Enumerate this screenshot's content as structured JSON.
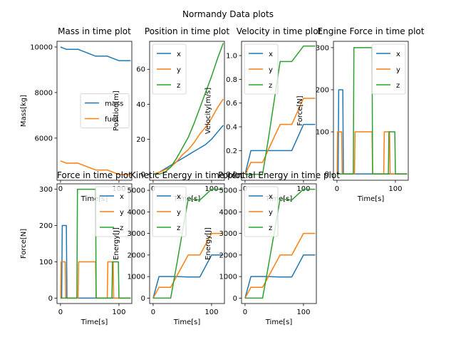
{
  "figure": {
    "suptitle": "Normandy Data plots"
  },
  "chart_data": [
    {
      "type": "line",
      "title": "Mass in time plot",
      "xlabel": "Time[s]",
      "ylabel": "Mass[kg]",
      "xlim": [
        -6,
        122
      ],
      "ylim": [
        4150,
        10250
      ],
      "xticks": [
        0,
        100
      ],
      "xtick_labels": [
        "0",
        "100"
      ],
      "yticks": [
        6000,
        8000,
        10000
      ],
      "ytick_labels": [
        "6000",
        "8000",
        "10000"
      ],
      "legend_position": "center-right",
      "series": [
        {
          "name": "mass",
          "color": "#1f77b4",
          "x": [
            0,
            10,
            30,
            60,
            80,
            100,
            120
          ],
          "y": [
            10000,
            9900,
            9900,
            9600,
            9600,
            9400,
            9400
          ]
        },
        {
          "name": "fuel",
          "color": "#ff7f0e",
          "x": [
            0,
            10,
            30,
            60,
            80,
            100,
            120
          ],
          "y": [
            5000,
            4900,
            4900,
            4600,
            4600,
            4400,
            4400
          ]
        }
      ]
    },
    {
      "type": "line",
      "title": "Position in time plot",
      "xlabel": "Time[s]",
      "ylabel": "Position[m]",
      "xlim": [
        -6,
        122
      ],
      "ylim": [
        -3.5,
        76
      ],
      "xticks": [
        0,
        100
      ],
      "xtick_labels": [
        "0",
        "100"
      ],
      "yticks": [
        0,
        20,
        40,
        60
      ],
      "ytick_labels": [
        "0",
        "20",
        "40",
        "60"
      ],
      "legend_position": "upper-left",
      "series": [
        {
          "name": "x",
          "color": "#1f77b4",
          "x": [
            0,
            10,
            20,
            30,
            40,
            50,
            60,
            70,
            80,
            90,
            100,
            110,
            120
          ],
          "y": [
            0,
            1,
            3,
            5,
            7,
            9,
            11,
            13,
            15,
            17,
            20,
            24,
            28
          ]
        },
        {
          "name": "y",
          "color": "#ff7f0e",
          "x": [
            0,
            10,
            20,
            30,
            40,
            50,
            60,
            70,
            80,
            90,
            100,
            110,
            120
          ],
          "y": [
            0,
            1,
            2.5,
            4,
            7,
            11,
            14,
            18,
            23,
            27,
            32,
            38,
            43
          ]
        },
        {
          "name": "z",
          "color": "#2ca02c",
          "x": [
            0,
            10,
            20,
            30,
            40,
            50,
            60,
            70,
            80,
            90,
            100,
            110,
            120
          ],
          "y": [
            0,
            0,
            1,
            4,
            9,
            15,
            21,
            29,
            38,
            47,
            56,
            66,
            75
          ]
        }
      ]
    },
    {
      "type": "line",
      "title": "Velocity in time plot",
      "xlabel": "Time[s]",
      "ylabel": "Velocity[m/s]",
      "xlim": [
        -6,
        122
      ],
      "ylim": [
        -0.05,
        1.12
      ],
      "xticks": [
        0,
        100
      ],
      "xtick_labels": [
        "0",
        "100"
      ],
      "yticks": [
        0.0,
        0.2,
        0.4,
        0.6,
        0.8,
        1.0
      ],
      "ytick_labels": [
        "0.0",
        "0.2",
        "0.4",
        "0.6",
        "0.8",
        "1.0"
      ],
      "legend_position": "upper-left",
      "series": [
        {
          "name": "x",
          "color": "#1f77b4",
          "x": [
            0,
            10,
            30,
            40,
            60,
            80,
            100,
            120
          ],
          "y": [
            0,
            0.2,
            0.2,
            0.2,
            0.2,
            0.2,
            0.42,
            0.42
          ]
        },
        {
          "name": "y",
          "color": "#ff7f0e",
          "x": [
            0,
            10,
            30,
            40,
            60,
            80,
            100,
            120
          ],
          "y": [
            0,
            0.1,
            0.1,
            0.21,
            0.42,
            0.42,
            0.64,
            0.64
          ]
        },
        {
          "name": "z",
          "color": "#2ca02c",
          "x": [
            0,
            10,
            30,
            40,
            60,
            80,
            100,
            120
          ],
          "y": [
            0,
            0,
            0,
            0.3,
            0.95,
            0.95,
            1.08,
            1.08
          ]
        }
      ]
    },
    {
      "type": "line",
      "title": "Engine Force in time plot",
      "xlabel": "Time[s]",
      "ylabel": "Force[N]",
      "xlim": [
        -6,
        122
      ],
      "ylim": [
        -15,
        315
      ],
      "xticks": [
        0,
        100
      ],
      "xtick_labels": [
        "0",
        "100"
      ],
      "yticks": [
        0,
        100,
        200,
        300
      ],
      "ytick_labels": [
        "0",
        "100",
        "200",
        "300"
      ],
      "legend_position": "upper-right",
      "series": [
        {
          "name": "x",
          "color": "#1f77b4",
          "x": [
            0,
            2,
            3,
            10,
            11,
            120
          ],
          "y": [
            0,
            0,
            200,
            200,
            0,
            0
          ]
        },
        {
          "name": "y",
          "color": "#ff7f0e",
          "x": [
            0,
            0.5,
            1,
            8,
            9,
            30,
            31,
            60,
            61,
            80,
            81,
            90,
            91,
            100,
            101,
            120
          ],
          "y": [
            0,
            0,
            100,
            100,
            0,
            0,
            100,
            100,
            0,
            0,
            100,
            100,
            0,
            0,
            0,
            0
          ]
        },
        {
          "name": "z",
          "color": "#2ca02c",
          "x": [
            0,
            28,
            29,
            60,
            61,
            88,
            89,
            99,
            100,
            120
          ],
          "y": [
            0,
            0,
            300,
            300,
            0,
            0,
            100,
            100,
            0,
            0
          ]
        }
      ]
    },
    {
      "type": "line",
      "title": "Force in time plot",
      "xlabel": "Time[s]",
      "ylabel": "Force[N]",
      "xlim": [
        -6,
        122
      ],
      "ylim": [
        -15,
        315
      ],
      "xticks": [
        0,
        100
      ],
      "xtick_labels": [
        "0",
        "100"
      ],
      "yticks": [
        0,
        100,
        200,
        300
      ],
      "ytick_labels": [
        "0",
        "100",
        "200",
        "300"
      ],
      "legend_position": "upper-right",
      "series": [
        {
          "name": "x",
          "color": "#1f77b4",
          "x": [
            0,
            2,
            3,
            10,
            11,
            120
          ],
          "y": [
            0,
            0,
            200,
            200,
            0,
            0
          ]
        },
        {
          "name": "y",
          "color": "#ff7f0e",
          "x": [
            0,
            0.5,
            1,
            8,
            9,
            30,
            31,
            60,
            61,
            80,
            81,
            90,
            91,
            100,
            101,
            120
          ],
          "y": [
            0,
            0,
            100,
            100,
            0,
            0,
            100,
            100,
            0,
            0,
            100,
            100,
            0,
            0,
            0,
            0
          ]
        },
        {
          "name": "z",
          "color": "#2ca02c",
          "x": [
            0,
            28,
            29,
            60,
            61,
            88,
            89,
            99,
            100,
            120
          ],
          "y": [
            0,
            0,
            300,
            300,
            0,
            0,
            100,
            100,
            0,
            0
          ]
        }
      ]
    },
    {
      "type": "line",
      "title": "Kinetic Energy in time plot",
      "xlabel": "Time[s]",
      "ylabel": "Energy[J]",
      "xlim": [
        -6,
        122
      ],
      "ylim": [
        -250,
        5300
      ],
      "xticks": [
        0,
        100
      ],
      "xtick_labels": [
        "0",
        "100"
      ],
      "yticks": [
        0,
        1000,
        2000,
        3000,
        4000,
        5000
      ],
      "ytick_labels": [
        "0",
        "1000",
        "2000",
        "3000",
        "4000",
        "5000"
      ],
      "legend_position": "upper-left",
      "series": [
        {
          "name": "x",
          "color": "#1f77b4",
          "x": [
            0,
            10,
            30,
            40,
            60,
            80,
            100,
            120
          ],
          "y": [
            0,
            1000,
            1000,
            1000,
            980,
            980,
            2000,
            2000
          ]
        },
        {
          "name": "y",
          "color": "#ff7f0e",
          "x": [
            0,
            10,
            30,
            40,
            60,
            80,
            100,
            120
          ],
          "y": [
            0,
            500,
            500,
            1000,
            2000,
            2000,
            3000,
            3000
          ]
        },
        {
          "name": "z",
          "color": "#2ca02c",
          "x": [
            0,
            10,
            30,
            40,
            60,
            80,
            100,
            120
          ],
          "y": [
            0,
            0,
            0,
            1500,
            4600,
            4550,
            5050,
            5050
          ]
        }
      ]
    },
    {
      "type": "line",
      "title": "Potential Energy in time plot",
      "xlabel": "Time[s]",
      "ylabel": "Energy[J]",
      "xlim": [
        -6,
        122
      ],
      "ylim": [
        -250,
        5300
      ],
      "xticks": [
        0,
        100
      ],
      "xtick_labels": [
        "0",
        "100"
      ],
      "yticks": [
        0,
        1000,
        2000,
        3000,
        4000,
        5000
      ],
      "ytick_labels": [
        "0",
        "1000",
        "2000",
        "3000",
        "4000",
        "5000"
      ],
      "legend_position": "upper-left",
      "series": [
        {
          "name": "x",
          "color": "#1f77b4",
          "x": [
            0,
            10,
            30,
            40,
            60,
            80,
            100,
            120
          ],
          "y": [
            0,
            1000,
            1000,
            1000,
            980,
            980,
            2000,
            2000
          ]
        },
        {
          "name": "y",
          "color": "#ff7f0e",
          "x": [
            0,
            10,
            30,
            40,
            60,
            80,
            100,
            120
          ],
          "y": [
            0,
            500,
            500,
            1000,
            2000,
            2000,
            3000,
            3000
          ]
        },
        {
          "name": "z",
          "color": "#2ca02c",
          "x": [
            0,
            10,
            30,
            40,
            60,
            80,
            100,
            120
          ],
          "y": [
            0,
            0,
            0,
            1500,
            4600,
            4550,
            5050,
            5050
          ]
        }
      ]
    }
  ]
}
